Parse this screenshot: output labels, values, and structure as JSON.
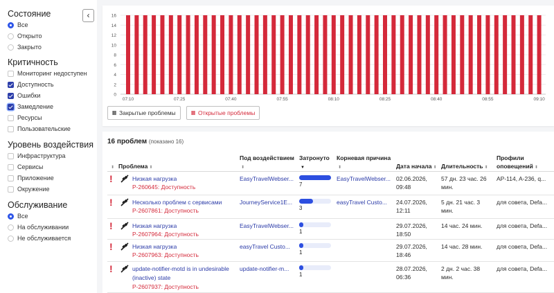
{
  "sidebar": {
    "collapse_icon": "‹",
    "state": {
      "title": "Состояние",
      "options": [
        {
          "label": "Все",
          "selected": true
        },
        {
          "label": "Открыто",
          "selected": false
        },
        {
          "label": "Закрыто",
          "selected": false
        }
      ]
    },
    "criticality": {
      "title": "Критичность",
      "options": [
        {
          "label": "Мониторинг недоступен",
          "checked": false
        },
        {
          "label": "Доступность",
          "checked": true
        },
        {
          "label": "Ошибки",
          "checked": true
        },
        {
          "label": "Замедление",
          "checked": true
        },
        {
          "label": "Ресурсы",
          "checked": false
        },
        {
          "label": "Пользовательские",
          "checked": false
        }
      ]
    },
    "impact": {
      "title": "Уровень воздействия",
      "options": [
        {
          "label": "Инфраструктура",
          "checked": false
        },
        {
          "label": "Сервисы",
          "checked": false
        },
        {
          "label": "Приложение",
          "checked": false
        },
        {
          "label": "Окружение",
          "checked": false
        }
      ]
    },
    "maintenance": {
      "title": "Обслуживание",
      "options": [
        {
          "label": "Все",
          "selected": true
        },
        {
          "label": "На обслуживании",
          "selected": false
        },
        {
          "label": "Не обслуживается",
          "selected": false
        }
      ]
    }
  },
  "chart": {
    "legend_closed": "Закрытые проблемы",
    "legend_open": "Открытые проблемы",
    "legend_icon": "III"
  },
  "chart_data": {
    "type": "bar",
    "title": "",
    "xlabel": "",
    "ylabel": "",
    "ylim": [
      0,
      16
    ],
    "yticks": [
      0,
      2,
      4,
      6,
      8,
      10,
      12,
      14,
      16
    ],
    "x_tick_labels": [
      "07:10",
      "07:25",
      "07:40",
      "07:55",
      "08:10",
      "08:25",
      "08:40",
      "08:55",
      "09:10"
    ],
    "bar_interval_minutes": 2.5,
    "series": [
      {
        "name": "Открытые проблемы",
        "color": "#d4293a",
        "values": [
          16,
          16,
          16,
          16,
          16,
          16,
          16,
          16,
          16,
          16,
          16,
          16,
          16,
          16,
          16,
          16,
          16,
          16,
          16,
          16,
          16,
          16,
          16,
          16,
          16,
          16,
          16,
          16,
          16,
          16,
          16,
          16,
          16,
          16,
          16,
          16,
          16,
          16,
          16,
          16,
          16,
          16,
          16,
          16,
          16,
          16,
          16,
          16,
          16,
          16,
          16,
          16,
          16,
          16,
          16,
          16,
          16,
          16,
          16,
          16,
          16,
          16,
          16,
          16,
          16,
          16,
          16,
          16,
          16,
          16,
          16,
          16,
          16,
          16,
          16,
          16,
          16,
          16,
          16,
          16,
          16,
          16,
          16,
          16,
          16,
          16,
          16,
          16,
          16,
          16,
          16,
          16,
          16,
          16,
          16,
          16,
          16,
          16,
          16,
          16,
          16,
          16,
          16,
          16,
          16,
          16,
          16,
          16,
          16,
          16
        ]
      }
    ],
    "grid": true
  },
  "table": {
    "count_label": "16 проблем",
    "shown_label": "(показано 16)",
    "headers": {
      "problem": "Проблема",
      "impacted": "Под воздействием",
      "affected": "Затронуто",
      "root_cause": "Корневая причина",
      "start_date": "Дата начала",
      "duration": "Длительность",
      "profiles_line1": "Профили",
      "profiles_line2": "оповещений"
    },
    "icons": {
      "severity": "!",
      "sort": "⬍",
      "sort_active": "▼",
      "plug": "plug-icon"
    },
    "rows": [
      {
        "title": "Низкая нагрузка",
        "title2": "",
        "id": "P-260645: Доступность",
        "impacted": "EasyTravelWebser...",
        "affected": 7,
        "affected_fraction": 1.0,
        "root_cause": "EasyTravelWebser...",
        "start_date": "02.06.2026,",
        "start_time": "09:48",
        "duration": "57 дн. 23 час. 26",
        "duration2": "мин.",
        "profiles": "AP-114, A-236, q..."
      },
      {
        "title": "Несколько проблем с сервисами",
        "title2": "",
        "id": "P-2607861: Доступность",
        "impacted": "JourneyService1E...",
        "affected": 3,
        "affected_fraction": 0.43,
        "root_cause": "easyTravel Custo...",
        "start_date": "24.07.2026,",
        "start_time": "12:11",
        "duration": "5 дн. 21 час. 3",
        "duration2": "мин.",
        "profiles": "для совета, Defa..."
      },
      {
        "title": "Низкая нагрузка",
        "title2": "",
        "id": "P-2607964: Доступность",
        "impacted": "EasyTravelWebser...",
        "affected": 1,
        "affected_fraction": 0.14,
        "root_cause": "",
        "start_date": "29.07.2026,",
        "start_time": "18:50",
        "duration": "14 час. 24 мин.",
        "duration2": "",
        "profiles": "для совета, Defa..."
      },
      {
        "title": "Низкая нагрузка",
        "title2": "",
        "id": "P-2607963: Доступность",
        "impacted": "easyTravel Custo...",
        "affected": 1,
        "affected_fraction": 0.14,
        "root_cause": "",
        "start_date": "29.07.2026,",
        "start_time": "18:46",
        "duration": "14 час. 28 мин.",
        "duration2": "",
        "profiles": "для совета, Defa..."
      },
      {
        "title": "update-notifier-motd is in undesirable",
        "title2": "(inactive) state",
        "id": "P-2607937: Доступность",
        "impacted": "update-notifier-m...",
        "affected": 1,
        "affected_fraction": 0.14,
        "root_cause": "",
        "start_date": "28.07.2026,",
        "start_time": "06:36",
        "duration": "2 дн. 2 час. 38",
        "duration2": "мин.",
        "profiles": "для совета, Defa..."
      }
    ]
  }
}
